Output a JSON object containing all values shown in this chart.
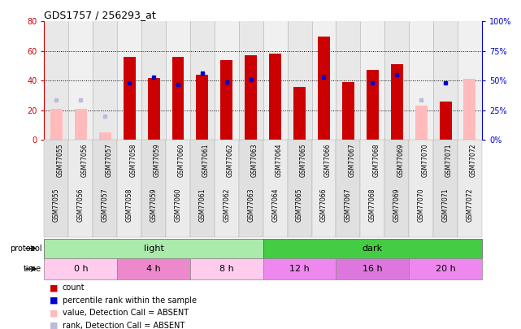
{
  "title": "GDS1757 / 256293_at",
  "samples": [
    "GSM77055",
    "GSM77056",
    "GSM77057",
    "GSM77058",
    "GSM77059",
    "GSM77060",
    "GSM77061",
    "GSM77062",
    "GSM77063",
    "GSM77064",
    "GSM77065",
    "GSM77066",
    "GSM77067",
    "GSM77068",
    "GSM77069",
    "GSM77070",
    "GSM77071",
    "GSM77072"
  ],
  "count_values": [
    null,
    null,
    null,
    56,
    42,
    56,
    44,
    54,
    57,
    58,
    36,
    70,
    39,
    47,
    51,
    null,
    26,
    null
  ],
  "rank_values": [
    null,
    null,
    null,
    48,
    53,
    47,
    56,
    49,
    51,
    null,
    null,
    53,
    null,
    48,
    55,
    null,
    48,
    null
  ],
  "absent_value": [
    21,
    21,
    5,
    null,
    null,
    null,
    null,
    null,
    null,
    null,
    null,
    null,
    null,
    null,
    null,
    23,
    null,
    41
  ],
  "absent_rank": [
    34,
    34,
    20,
    null,
    null,
    null,
    null,
    null,
    null,
    null,
    null,
    null,
    null,
    null,
    null,
    34,
    null,
    null
  ],
  "ylim_left": [
    0,
    80
  ],
  "ylim_right": [
    0,
    100
  ],
  "yticks_left": [
    0,
    20,
    40,
    60,
    80
  ],
  "yticks_right": [
    0,
    25,
    50,
    75,
    100
  ],
  "left_color": "#cc0000",
  "right_color": "#0000cc",
  "absent_bar_color": "#ffbbbb",
  "absent_rank_color": "#bbbbdd",
  "bar_width": 0.5,
  "light_color": "#aaeaaa",
  "dark_color": "#44cc44",
  "time_colors": [
    "#ffccee",
    "#ee88cc",
    "#ffccee",
    "#ee88ee",
    "#dd77dd",
    "#ee88ee"
  ],
  "bg_color": "#ffffff"
}
